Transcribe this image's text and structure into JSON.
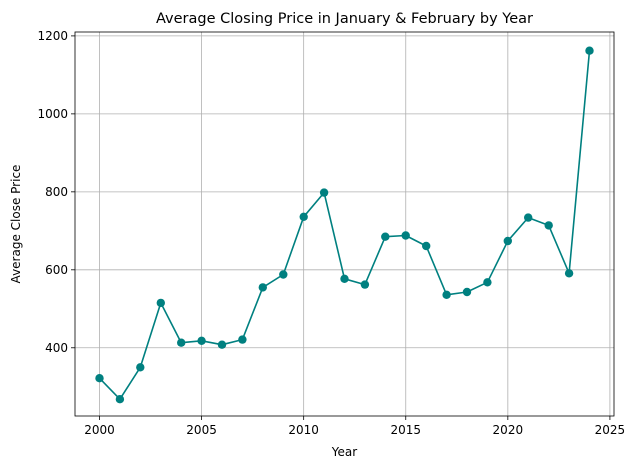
{
  "chart_data": {
    "type": "line",
    "title": "Average Closing Price in January & February by Year",
    "xlabel": "Year",
    "ylabel": "Average Close Price",
    "xlim": [
      1998.8,
      2025.2
    ],
    "ylim": [
      225,
      1210
    ],
    "xticks": [
      2000,
      2005,
      2010,
      2015,
      2020,
      2025
    ],
    "yticks": [
      400,
      600,
      800,
      1000,
      1200
    ],
    "grid": true,
    "series": [
      {
        "color": "#008080",
        "marker": "circle",
        "x": [
          2000,
          2001,
          2002,
          2003,
          2004,
          2005,
          2006,
          2007,
          2008,
          2009,
          2010,
          2011,
          2012,
          2013,
          2014,
          2015,
          2016,
          2017,
          2018,
          2019,
          2020,
          2021,
          2022,
          2023,
          2024
        ],
        "y": [
          322,
          268,
          350,
          515,
          413,
          418,
          408,
          421,
          555,
          588,
          736,
          798,
          577,
          562,
          685,
          688,
          661,
          536,
          543,
          568,
          674,
          734,
          714,
          591,
          1162
        ]
      }
    ]
  }
}
